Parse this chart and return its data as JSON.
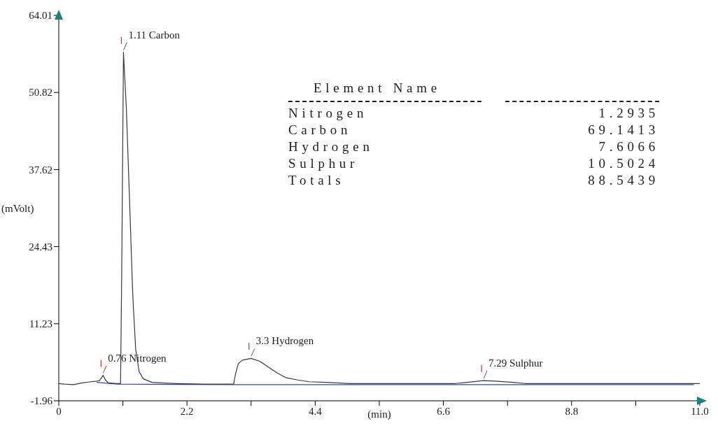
{
  "chart_data": {
    "type": "line",
    "xlabel": "(min)",
    "ylabel": "(mVolt)",
    "xlim": [
      0,
      11
    ],
    "xticks": [
      0.0,
      {
        "value": 1.1,
        "label": null
      },
      2.2,
      {
        "value": 3.3,
        "label": null
      },
      4.4,
      {
        "value": 5.5,
        "label": null
      },
      6.6,
      {
        "value": 7.7,
        "label": null
      },
      8.8,
      {
        "value": 9.9,
        "label": null
      },
      {
        "value": 11,
        "label": "11.0"
      }
    ],
    "ylim": [
      -1.96,
      64.01
    ],
    "yticks": [
      -1.96,
      11.23,
      24.43,
      37.62,
      50.82,
      64.01
    ],
    "grid": false,
    "legend": false,
    "marker": "none",
    "line_style": "solid",
    "series": [
      {
        "color": "#3a3a3a",
        "x": [
          0,
          0.1,
          0.25,
          0.4,
          0.55,
          0.65,
          0.7,
          0.76,
          0.8,
          0.85,
          1.0,
          1.06,
          1.08,
          1.11,
          1.16,
          1.22,
          1.27,
          1.32,
          1.38,
          1.45,
          1.6,
          2.0,
          2.5,
          3.0,
          3.03,
          3.08,
          3.15,
          3.3,
          3.45,
          3.6,
          3.75,
          3.9,
          4.1,
          4.3,
          4.6,
          5.0,
          6.0,
          6.8,
          7.0,
          7.29,
          7.5,
          7.8,
          8.0,
          9.0,
          10.0,
          11.0
        ],
        "values": [
          1.0,
          0.9,
          0.8,
          1.1,
          1.3,
          1.4,
          1.5,
          2.4,
          1.6,
          1.1,
          1.0,
          1.0,
          20.0,
          57.7,
          48.0,
          30.7,
          16.0,
          6.8,
          3.0,
          1.8,
          1.2,
          1.0,
          0.9,
          0.9,
          2.5,
          4.4,
          5.0,
          5.3,
          4.8,
          3.8,
          2.8,
          2.0,
          1.6,
          1.3,
          1.2,
          1.0,
          1.0,
          1.0,
          1.2,
          1.5,
          1.4,
          1.2,
          1.0,
          1.0,
          1.0,
          1.0
        ]
      },
      {
        "color": "#3344cc",
        "x": [
          0.65,
          1.0,
          3.0,
          5.0,
          8.0,
          10.9
        ],
        "values": [
          1.2,
          0.9,
          0.8,
          0.8,
          0.8,
          0.8
        ]
      }
    ],
    "annotations": [
      {
        "text": "0.76  Nitrogen",
        "x": 0.76,
        "y": 2.4
      },
      {
        "text": "1.11  Carbon",
        "x": 1.11,
        "y": 57.7
      },
      {
        "text": "3.3  Hydrogen",
        "x": 3.3,
        "y": 5.3
      },
      {
        "text": "7.29  Sulphur",
        "x": 7.29,
        "y": 1.5
      },
      "Element Name",
      "Nitrogen",
      "1.2935",
      "Carbon",
      "69.1413",
      "Hydrogen",
      "7.6066",
      "Sulphur",
      "10.5024",
      "Totals",
      "88.5439"
    ]
  }
}
